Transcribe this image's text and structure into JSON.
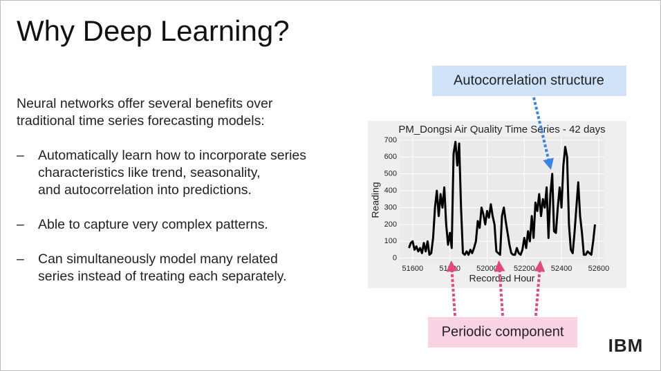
{
  "slide": {
    "title": "Why Deep Learning?",
    "intro": [
      "Neural networks offer several benefits over",
      "traditional time series forecasting models:"
    ],
    "bullets": [
      {
        "marker": "–",
        "lines": [
          "Automatically learn how to incorporate series",
          "characteristics like trend, seasonality,",
          "and autocorrelation into predictions."
        ]
      },
      {
        "marker": "–",
        "lines": [
          "Able to capture very complex patterns."
        ]
      },
      {
        "marker": "–",
        "lines": [
          "Can simultaneously model many related",
          "series instead of treating each separately."
        ]
      }
    ],
    "annotations": [
      "Autocorrelation structure",
      "Periodic component"
    ],
    "logo": "IBM"
  },
  "chart_data": {
    "type": "line",
    "title": "PM_Dongsi Air Quality Time Series - 42 days",
    "x_label": "Recorded Hour",
    "y_label": "Reading",
    "x": [
      51580,
      51590,
      51600,
      51610,
      51620,
      51630,
      51640,
      51650,
      51660,
      51670,
      51680,
      51690,
      51700,
      51710,
      51720,
      51730,
      51740,
      51750,
      51760,
      51770,
      51780,
      51790,
      51800,
      51810,
      51820,
      51830,
      51840,
      51850,
      51860,
      51870,
      51880,
      51890,
      51900,
      51910,
      51920,
      51930,
      51940,
      51950,
      51960,
      51970,
      51980,
      51990,
      52000,
      52010,
      52020,
      52030,
      52040,
      52050,
      52060,
      52070,
      52080,
      52090,
      52100,
      52110,
      52120,
      52130,
      52140,
      52150,
      52160,
      52170,
      52180,
      52190,
      52200,
      52210,
      52220,
      52230,
      52240,
      52250,
      52260,
      52270,
      52280,
      52290,
      52300,
      52310,
      52320,
      52330,
      52340,
      52350,
      52360,
      52370,
      52380,
      52390,
      52400,
      52410,
      52420,
      52430,
      52440,
      52450,
      52460,
      52470,
      52480,
      52490,
      52500,
      52510,
      52520,
      52530,
      52540,
      52550,
      52560,
      52570,
      52580
    ],
    "series": [
      {
        "name": "Reading",
        "color": "#000000",
        "values": [
          60,
          90,
          100,
          50,
          70,
          40,
          60,
          30,
          90,
          40,
          100,
          20,
          30,
          120,
          300,
          400,
          250,
          380,
          300,
          420,
          200,
          80,
          150,
          60,
          620,
          690,
          550,
          680,
          300,
          30,
          20,
          40,
          20,
          50,
          30,
          60,
          100,
          220,
          180,
          300,
          260,
          200,
          280,
          240,
          320,
          250,
          200,
          40,
          30,
          20,
          250,
          300,
          220,
          150,
          80,
          30,
          20,
          20,
          60,
          30,
          20,
          50,
          120,
          60,
          160,
          100,
          250,
          120,
          330,
          280,
          380,
          250,
          350,
          300,
          420,
          120,
          380,
          500,
          160,
          150,
          300,
          420,
          300,
          550,
          660,
          600,
          200,
          50,
          30,
          150,
          300,
          450,
          250,
          150,
          20,
          20,
          40,
          30,
          20,
          100,
          200
        ]
      }
    ],
    "xlim": [
      51530,
      52630
    ],
    "ylim": [
      -30,
      720
    ],
    "xticks": [
      51600,
      51800,
      52000,
      52200,
      52400,
      52600
    ],
    "yticks": [
      0,
      100,
      200,
      300,
      400,
      500,
      600,
      700
    ],
    "grid": true,
    "background": "#eaeaea"
  }
}
